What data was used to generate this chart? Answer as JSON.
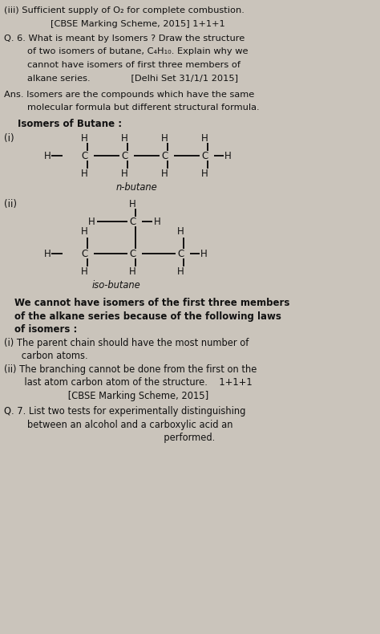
{
  "bg_color": "#cac4bb",
  "text_color": "#111111",
  "line1": "(iii) Sufficient supply of O₂ for complete combustion.",
  "line2": "                [CBSE Marking Scheme, 2015] 1+1+1",
  "q6_lines": [
    "Q. 6. What is meant by Isomers ? Draw the structure",
    "        of two isomers of butane, C₄H₁₀. Explain why we",
    "        cannot have isomers of first three members of",
    "        alkane series.              [Delhi Set 31/1/1 2015]"
  ],
  "ans_lines": [
    "Ans. Isomers are the compounds which have the same",
    "        molecular formula but different structural formula."
  ],
  "isomers_bold": "Isomers of Butane :",
  "nbutane": "n-butane",
  "isobutane": "iso-butane",
  "bottom_bold": [
    "We cannot have isomers of the first three members",
    "of the alkane series because of the following laws",
    "of isomers :"
  ],
  "bottom_normal": [
    "(i) The parent chain should have the most number of",
    "      carbon atoms.",
    "(ii) The branching cannot be done from the first on the",
    "       last atom carbon atom of the structure.    1+1+1",
    "                      [CBSE Marking Scheme, 2015]"
  ],
  "q7_lines": [
    "Q. 7. List two tests for experimentally distinguishing",
    "        between an alcohol and a carboxylic acid an",
    "                                                       performed."
  ]
}
